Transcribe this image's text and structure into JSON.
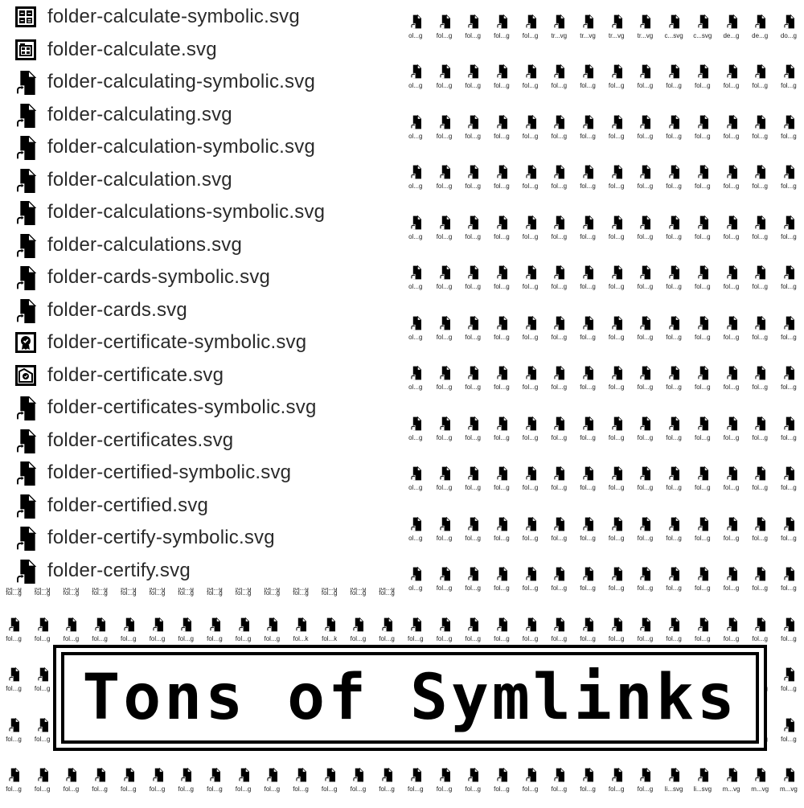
{
  "files": [
    {
      "name": "folder-calculate-symbolic.svg",
      "icon": "calculator-icon"
    },
    {
      "name": "folder-calculate.svg",
      "icon": "calculator-folder-icon"
    },
    {
      "name": "folder-calculating-symbolic.svg",
      "icon": "symlink-file-icon"
    },
    {
      "name": "folder-calculating.svg",
      "icon": "symlink-file-icon"
    },
    {
      "name": "folder-calculation-symbolic.svg",
      "icon": "symlink-file-icon"
    },
    {
      "name": "folder-calculation.svg",
      "icon": "symlink-file-icon"
    },
    {
      "name": "folder-calculations-symbolic.svg",
      "icon": "symlink-file-icon"
    },
    {
      "name": "folder-calculations.svg",
      "icon": "symlink-file-icon"
    },
    {
      "name": "folder-cards-symbolic.svg",
      "icon": "symlink-file-icon"
    },
    {
      "name": "folder-cards.svg",
      "icon": "symlink-file-icon"
    },
    {
      "name": "folder-certificate-symbolic.svg",
      "icon": "certificate-icon"
    },
    {
      "name": "folder-certificate.svg",
      "icon": "certificate-folder-icon"
    },
    {
      "name": "folder-certificates-symbolic.svg",
      "icon": "symlink-file-icon"
    },
    {
      "name": "folder-certificates.svg",
      "icon": "symlink-file-icon"
    },
    {
      "name": "folder-certified-symbolic.svg",
      "icon": "symlink-file-icon"
    },
    {
      "name": "folder-certified.svg",
      "icon": "symlink-file-icon"
    },
    {
      "name": "folder-certify-symbolic.svg",
      "icon": "symlink-file-icon"
    },
    {
      "name": "folder-certify.svg",
      "icon": "symlink-file-icon"
    }
  ],
  "grid": {
    "label_default": "fol...g",
    "label_edge": "ol...g",
    "top_row_labels": [
      "ol...g",
      "fol...g",
      "fol...g",
      "fol...g",
      "fol...g",
      "tr...vg",
      "tr...vg",
      "tr...vg",
      "tr...vg",
      "c...svg",
      "c...svg",
      "de...g",
      "de...g",
      "do...g"
    ],
    "row_800_labels": [
      "fol...g",
      "fol...g",
      "fol...g",
      "fol...g",
      "fol...g",
      "fol...g",
      "fol...g",
      "fol...g",
      "fol...g",
      "fol...g",
      "fol...k",
      "fol...k",
      "fol...g",
      "fol...g",
      "fol...g",
      "fol...g",
      "fol...g",
      "fol...g",
      "fol...g",
      "fol...g",
      "fol...g",
      "fol...g",
      "fol...g",
      "fol...g",
      "fol...g",
      "fol...g",
      "fol...g",
      "fol...g"
    ],
    "bottom_row_labels": [
      "fol...g",
      "fol...g",
      "fol...g",
      "fol...g",
      "fol...g",
      "fol...g",
      "fol...g",
      "fol...g",
      "fol...g",
      "fol...g",
      "fol...g",
      "fol...g",
      "fol...g",
      "fol...g",
      "fol...g",
      "fol...g",
      "fol...g",
      "fol...g",
      "fol...g",
      "fol...g",
      "fol...g",
      "fol...g",
      "fol...g",
      "li...svg",
      "li...svg",
      "m...vg",
      "m...vg",
      "m...vg"
    ]
  },
  "banner": {
    "title": "Tons of Symlinks"
  }
}
